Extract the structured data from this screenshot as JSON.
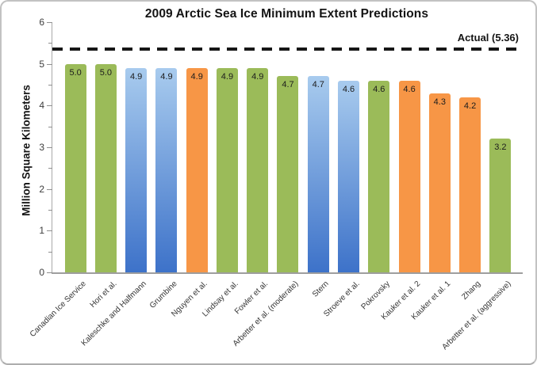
{
  "chart_data": {
    "type": "bar",
    "title": "2009 Arctic Sea Ice Minimum Extent Predictions",
    "ylabel": "Million Square Kilometers",
    "xlabel": "",
    "ylim": [
      0,
      6
    ],
    "yticks": [
      0,
      1,
      2,
      3,
      4,
      5,
      6
    ],
    "minor_tick_step": 0.5,
    "grid": false,
    "legend_position": "none",
    "categories": [
      "Canadian Ice Service",
      "Hori et al.",
      "Kaleschke and Halfmann",
      "Grumbine",
      "Nguyen et al.",
      "Lindsay et al.",
      "Fowler et al.",
      "Arbetter et al. (moderate)",
      "Stern",
      "Stroeve et al.",
      "Pokrovsky",
      "Kauker et al. 2",
      "Kauker et al. 1",
      "Zhang",
      "Arbetter et al. (aggressive)"
    ],
    "values": [
      5.0,
      5.0,
      4.9,
      4.9,
      4.9,
      4.9,
      4.9,
      4.7,
      4.7,
      4.6,
      4.6,
      4.6,
      4.3,
      4.2,
      3.2
    ],
    "value_labels": [
      "5.0",
      "5.0",
      "4.9",
      "4.9",
      "4.9",
      "4.9",
      "4.9",
      "4.7",
      "4.7",
      "4.6",
      "4.6",
      "4.6",
      "4.3",
      "4.2",
      "3.2"
    ],
    "bar_color_keys": [
      "green",
      "green",
      "blue",
      "blue",
      "orange",
      "green",
      "green",
      "green",
      "blue",
      "blue",
      "green",
      "orange",
      "orange",
      "orange",
      "green"
    ],
    "reference_line": {
      "value": 5.36,
      "label": "Actual (5.36)"
    },
    "colors": {
      "green": "#9BBB59",
      "orange": "#F79646",
      "blue_top": "#A8CBEE",
      "blue_bottom": "#3D72C9",
      "reference": "#161616",
      "axis": "#9E9E9E"
    }
  }
}
